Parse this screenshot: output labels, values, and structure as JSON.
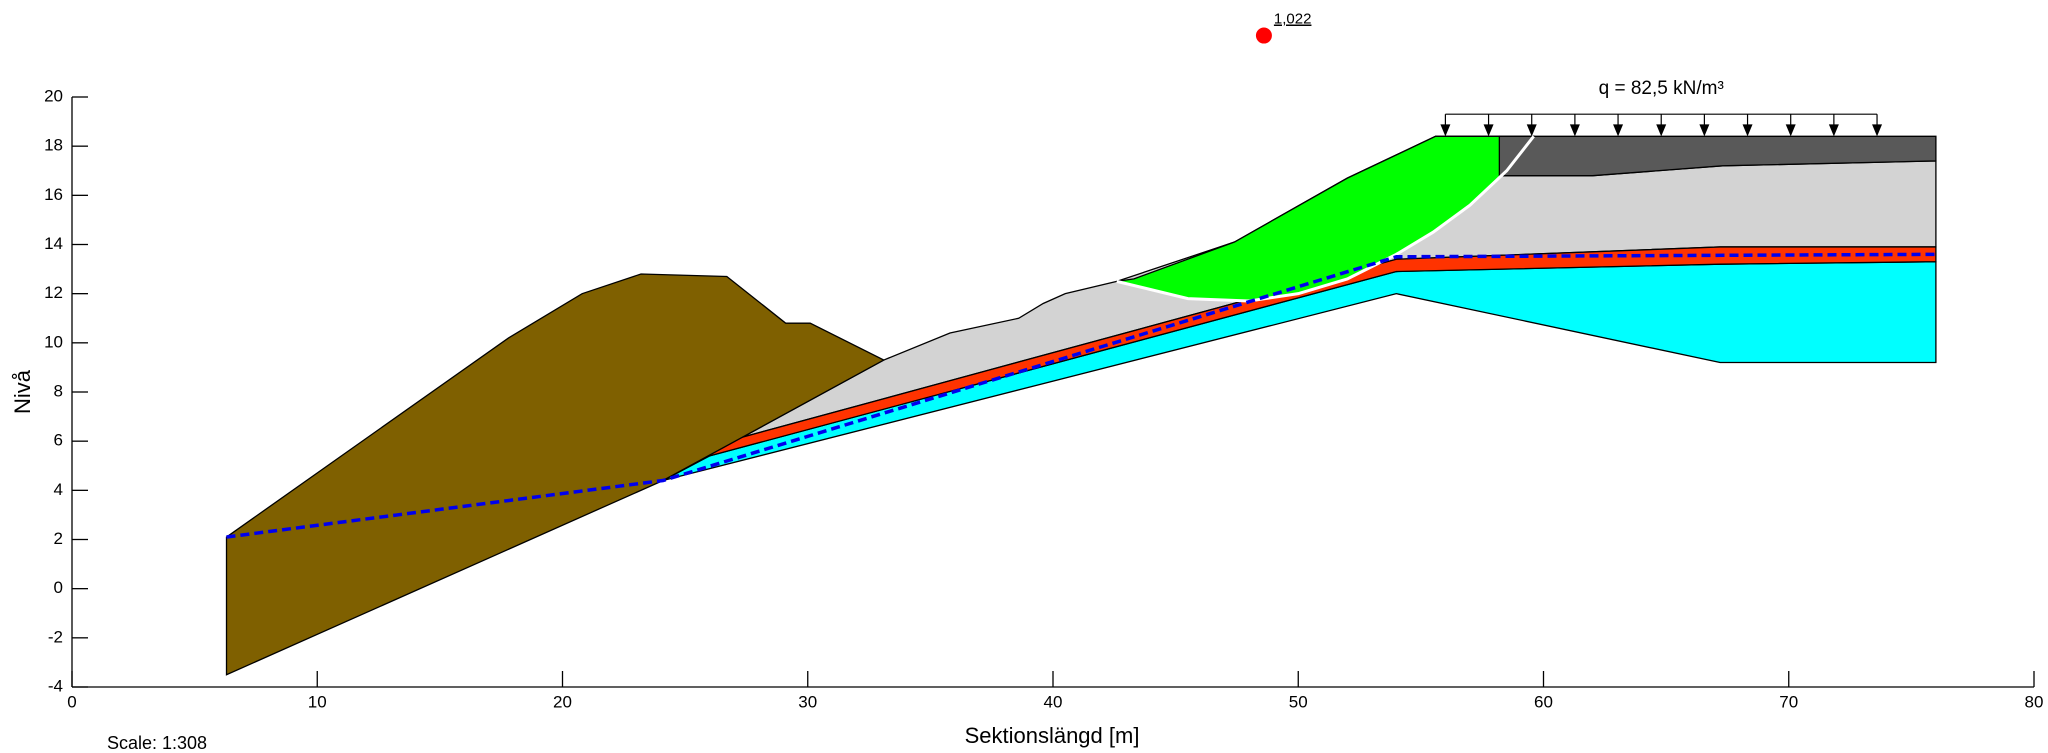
{
  "chart_data": {
    "type": "cross-section",
    "xlabel": "Sektionslängd [m]",
    "ylabel": "Nivå",
    "scale_text": "Scale: 1:308",
    "xlim": [
      0,
      80
    ],
    "ylim": [
      -4,
      20
    ],
    "xticks": [
      0,
      10,
      20,
      30,
      40,
      50,
      60,
      70,
      80
    ],
    "yticks": [
      -4,
      -2,
      0,
      2,
      4,
      6,
      8,
      10,
      12,
      14,
      16,
      18,
      20
    ],
    "layers": [
      {
        "color": "#d3d3d3",
        "x": [
          24.1,
          33.1,
          35.8,
          38.6,
          39.6,
          40.5,
          42.6,
          47.4,
          52,
          55.6,
          58.2,
          58.2,
          62,
          67.3,
          76,
          76,
          67.2,
          54,
          26
        ],
        "y": [
          4.4,
          9.3,
          10.4,
          11.0,
          11.6,
          12.0,
          12.5,
          14.1,
          16.7,
          18.4,
          18.4,
          16.8,
          16.8,
          17.2,
          17.4,
          13.9,
          13.9,
          13.4,
          5.8
        ]
      },
      {
        "color": "#00ffff",
        "x": [
          24.1,
          54,
          67.2,
          76,
          76,
          67.2,
          54,
          26
        ],
        "y": [
          4.4,
          12.0,
          9.2,
          9.2,
          13.3,
          13.2,
          12.9,
          5.4
        ]
      },
      {
        "color": "#ff3300",
        "x": [
          26,
          54,
          67.2,
          76,
          76,
          67.2,
          54,
          26
        ],
        "y": [
          5.4,
          12.9,
          13.2,
          13.3,
          13.9,
          13.9,
          13.4,
          5.8
        ]
      },
      {
        "color": "#7f6000",
        "x": [
          6.3,
          17.8,
          20.8,
          23.2,
          26.7,
          29.1,
          30.1,
          33.1,
          24.1,
          6.3
        ],
        "y": [
          2.1,
          10.2,
          12.0,
          12.8,
          12.7,
          10.8,
          10.8,
          9.3,
          4.4,
          -3.5
        ]
      },
      {
        "color": "#00ff00",
        "x": [
          42.6,
          43.3,
          47.4,
          52,
          55.6,
          59.6,
          58.5,
          57,
          55.5,
          54,
          52,
          50,
          48,
          45.5
        ],
        "y": [
          12.5,
          12.6,
          14.1,
          16.7,
          18.4,
          18.4,
          17.0,
          15.6,
          14.5,
          13.6,
          12.6,
          12.0,
          11.7,
          11.8
        ]
      },
      {
        "color": "#595959",
        "x": [
          58.2,
          59.6,
          76,
          76,
          67.3,
          62,
          58.2
        ],
        "y": [
          18.4,
          18.4,
          18.4,
          17.4,
          17.2,
          16.8,
          16.8
        ]
      }
    ],
    "slip_surface": {
      "color": "#ffffff",
      "x": [
        59.6,
        58.5,
        57,
        55.5,
        54,
        52,
        50,
        48,
        45.5,
        42.6
      ],
      "y": [
        18.4,
        17.0,
        15.6,
        14.5,
        13.6,
        12.6,
        12.0,
        11.7,
        11.8,
        12.5
      ]
    },
    "water_table": {
      "color": "#0000ee",
      "x": [
        6.3,
        24.1,
        54,
        76
      ],
      "y": [
        2.1,
        4.4,
        13.5,
        13.6
      ]
    },
    "load": {
      "label": "q = 82,5 kN/m³",
      "x": [
        56,
        73.6
      ],
      "y": 19.3,
      "base": 18.4,
      "arrows": 11
    },
    "center": {
      "color": "#ff0000",
      "x": 48.6,
      "y": 22.5,
      "label": "1,022"
    }
  }
}
